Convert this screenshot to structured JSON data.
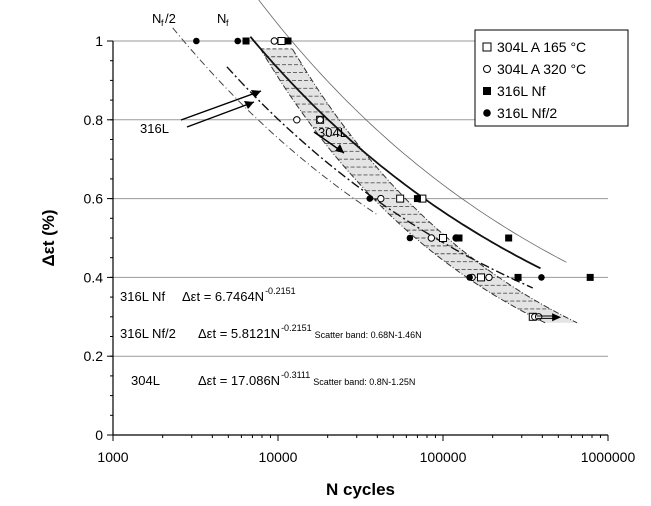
{
  "chart_data": {
    "type": "scatter",
    "title": "",
    "xlabel": "N cycles",
    "ylabel": "Δεt (%)",
    "x_scale": "log",
    "xlim": [
      1000,
      1000000
    ],
    "ylim": [
      0,
      1
    ],
    "x_ticks": [
      1000,
      10000,
      100000,
      1000000
    ],
    "x_tick_labels": [
      "1000",
      "10000",
      "100000",
      "1000000"
    ],
    "y_ticks": [
      0,
      0.2,
      0.4,
      0.6,
      0.8,
      1
    ],
    "y_tick_labels": [
      "0",
      "0.2",
      "0.4",
      "0.6",
      "0.8",
      "1"
    ],
    "grid": "horizontal",
    "legend_position": "top-right",
    "series": [
      {
        "name": "304L A 165 °C",
        "marker": "open-square",
        "points": [
          [
            10500,
            1.0
          ],
          [
            18000,
            0.8
          ],
          [
            55000,
            0.6
          ],
          [
            75000,
            0.6
          ],
          [
            100000,
            0.5
          ],
          [
            170000,
            0.4
          ],
          [
            350000,
            0.3
          ]
        ]
      },
      {
        "name": "304L A 320 °C",
        "marker": "open-circle",
        "points": [
          [
            9500,
            1.0
          ],
          [
            13000,
            0.8
          ],
          [
            18000,
            0.8
          ],
          [
            42000,
            0.6
          ],
          [
            85000,
            0.5
          ],
          [
            120000,
            0.5
          ],
          [
            150000,
            0.4
          ],
          [
            190000,
            0.4
          ],
          [
            360000,
            0.3
          ],
          [
            380000,
            0.3
          ]
        ]
      },
      {
        "name": "316L Nf",
        "marker": "filled-square",
        "points": [
          [
            6400,
            1.0
          ],
          [
            11500,
            1.0
          ],
          [
            70000,
            0.6
          ],
          [
            125000,
            0.5
          ],
          [
            250000,
            0.5
          ],
          [
            285000,
            0.4
          ],
          [
            780000,
            0.4
          ]
        ]
      },
      {
        "name": "316L Nf/2",
        "marker": "filled-circle",
        "points": [
          [
            3200,
            1.0
          ],
          [
            5700,
            1.0
          ],
          [
            36000,
            0.6
          ],
          [
            63000,
            0.5
          ],
          [
            120000,
            0.5
          ],
          [
            145000,
            0.4
          ],
          [
            395000,
            0.4
          ]
        ]
      }
    ],
    "curves": [
      {
        "label": "316L Nf",
        "a": 6.7464,
        "b": -0.2151,
        "style": "dash-dot"
      },
      {
        "label": "316L Nf/2",
        "a": 5.8121,
        "b": -0.2151,
        "style": "dash-dot"
      },
      {
        "label": "304L",
        "a": 17.086,
        "b": -0.3111,
        "style": "solid"
      }
    ],
    "annotations": {
      "top_left": "Nf/2",
      "top_right": "Nf",
      "label_316": "316L",
      "label_304": "304L",
      "eq1_name": "316L Nf",
      "eq1_sym": "Δεt = 6.7464N",
      "eq1_exp": "-0.2151",
      "eq2_name": "316L Nf/2",
      "eq2_sym": "Δεt = 5.8121N",
      "eq2_exp": "-0.2151",
      "eq2_scatter": "Scatter band: 0.68N-1.46N",
      "eq3_name": "304L",
      "eq3_sym": "Δεt = 17.086N",
      "eq3_exp": "-0.3111",
      "eq3_scatter": "Scatter band: 0.8N-1.25N"
    }
  }
}
